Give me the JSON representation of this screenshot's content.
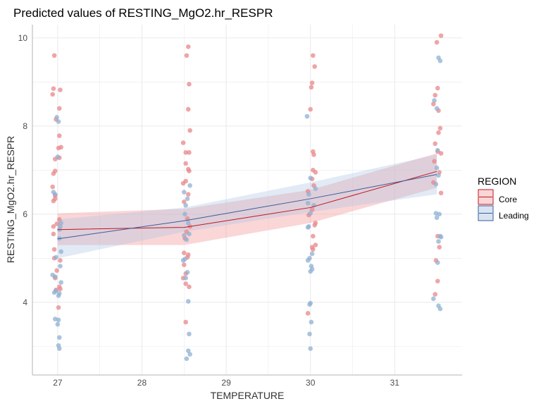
{
  "chart_data": {
    "type": "scatter",
    "title": "Predicted values of RESTING_MgO2.hr_RESPR",
    "xlabel": "TEMPERATURE",
    "ylabel": "RESTING_MgO2.hr_RESPR",
    "x_ticks": [
      27,
      28,
      29,
      30,
      31
    ],
    "y_ticks": [
      4,
      6,
      8,
      10
    ],
    "xlim": [
      26.7,
      31.8
    ],
    "ylim": [
      2.35,
      10.3
    ],
    "grid": true,
    "legend": {
      "title": "REGION",
      "position": "right",
      "entries": [
        "Core",
        "Leading"
      ]
    },
    "colors": {
      "core_line": "#c4161c",
      "core_point": "#e8878a",
      "core_band": "#f5a3a6",
      "leading_line": "#3b5c9a",
      "leading_point": "#8fb0d3",
      "leading_band": "#a9c4e3",
      "grid": "#ebebeb",
      "axis": "#b3b3b3"
    },
    "series": [
      {
        "name": "Core",
        "fit": {
          "x": [
            27,
            28.5,
            30,
            31.5
          ],
          "y": [
            5.65,
            5.7,
            6.15,
            6.97
          ],
          "lower": [
            5.3,
            5.3,
            5.8,
            6.6
          ],
          "upper": [
            6.02,
            6.12,
            6.55,
            7.38
          ]
        },
        "points": [
          [
            26.96,
            9.6
          ],
          [
            26.95,
            8.85
          ],
          [
            26.94,
            8.72
          ],
          [
            27.03,
            8.82
          ],
          [
            27.02,
            8.4
          ],
          [
            26.98,
            8.15
          ],
          [
            27.02,
            7.78
          ],
          [
            27.01,
            7.5
          ],
          [
            27.04,
            7.52
          ],
          [
            26.97,
            7.25
          ],
          [
            27.02,
            7.28
          ],
          [
            26.97,
            6.98
          ],
          [
            26.95,
            6.92
          ],
          [
            26.94,
            6.62
          ],
          [
            26.97,
            6.42
          ],
          [
            26.95,
            6.3
          ],
          [
            26.97,
            6.35
          ],
          [
            27.02,
            5.88
          ],
          [
            26.99,
            5.78
          ],
          [
            26.95,
            5.72
          ],
          [
            26.95,
            5.55
          ],
          [
            26.96,
            5.2
          ],
          [
            26.96,
            5.0
          ],
          [
            27.03,
            4.95
          ],
          [
            26.99,
            4.72
          ],
          [
            26.97,
            4.55
          ],
          [
            27.02,
            4.35
          ],
          [
            27.03,
            4.3
          ],
          [
            26.98,
            4.28
          ],
          [
            27.01,
            3.88
          ],
          [
            28.55,
            9.8
          ],
          [
            28.53,
            9.6
          ],
          [
            28.56,
            8.95
          ],
          [
            28.55,
            8.38
          ],
          [
            28.57,
            7.9
          ],
          [
            28.49,
            7.62
          ],
          [
            28.52,
            7.4
          ],
          [
            28.56,
            7.4
          ],
          [
            28.52,
            7.15
          ],
          [
            28.55,
            7.02
          ],
          [
            28.56,
            6.98
          ],
          [
            28.52,
            6.75
          ],
          [
            28.49,
            6.7
          ],
          [
            28.55,
            6.45
          ],
          [
            28.5,
            6.28
          ],
          [
            28.54,
            5.9
          ],
          [
            28.57,
            5.72
          ],
          [
            28.53,
            5.6
          ],
          [
            28.51,
            5.45
          ],
          [
            28.5,
            5.12
          ],
          [
            28.55,
            5.08
          ],
          [
            28.54,
            5.02
          ],
          [
            28.5,
            4.85
          ],
          [
            28.52,
            4.65
          ],
          [
            28.49,
            4.55
          ],
          [
            28.52,
            4.42
          ],
          [
            28.56,
            4.35
          ],
          [
            28.52,
            3.55
          ],
          [
            30.03,
            9.6
          ],
          [
            30.05,
            9.35
          ],
          [
            30.02,
            8.98
          ],
          [
            30.01,
            8.88
          ],
          [
            30.0,
            8.38
          ],
          [
            30.03,
            7.42
          ],
          [
            30.04,
            7.35
          ],
          [
            30.03,
            7.0
          ],
          [
            30.06,
            6.95
          ],
          [
            30.02,
            6.8
          ],
          [
            30.04,
            6.65
          ],
          [
            29.97,
            6.52
          ],
          [
            30.02,
            6.1
          ],
          [
            29.98,
            5.98
          ],
          [
            30.06,
            5.8
          ],
          [
            30.05,
            5.75
          ],
          [
            30.03,
            5.5
          ],
          [
            30.06,
            5.3
          ],
          [
            30.02,
            5.25
          ],
          [
            30.03,
            5.2
          ],
          [
            29.97,
            3.75
          ],
          [
            31.55,
            10.05
          ],
          [
            31.5,
            9.9
          ],
          [
            31.48,
            8.7
          ],
          [
            31.51,
            8.86
          ],
          [
            31.46,
            8.5
          ],
          [
            31.52,
            8.35
          ],
          [
            31.54,
            7.95
          ],
          [
            31.52,
            7.85
          ],
          [
            31.48,
            7.6
          ],
          [
            31.51,
            7.42
          ],
          [
            31.55,
            7.38
          ],
          [
            31.47,
            7.2
          ],
          [
            31.53,
            6.95
          ],
          [
            31.46,
            6.72
          ],
          [
            31.55,
            6.48
          ],
          [
            31.51,
            5.5
          ],
          [
            31.53,
            5.25
          ],
          [
            31.49,
            4.95
          ],
          [
            31.51,
            4.48
          ],
          [
            31.48,
            4.18
          ]
        ]
      },
      {
        "name": "Leading",
        "fit": {
          "x": [
            27,
            28.5,
            30,
            31.5
          ],
          "y": [
            5.44,
            5.85,
            6.35,
            6.9
          ],
          "lower": [
            5.0,
            5.6,
            6.05,
            6.45
          ],
          "upper": [
            5.88,
            6.15,
            6.72,
            7.35
          ]
        },
        "points": [
          [
            26.99,
            8.2
          ],
          [
            27.01,
            8.1
          ],
          [
            27.0,
            7.3
          ],
          [
            26.95,
            6.5
          ],
          [
            26.97,
            6.45
          ],
          [
            27.04,
            5.8
          ],
          [
            27.03,
            5.72
          ],
          [
            27.02,
            5.65
          ],
          [
            27.02,
            5.45
          ],
          [
            27.04,
            5.15
          ],
          [
            26.98,
            5.02
          ],
          [
            27.03,
            4.82
          ],
          [
            26.94,
            4.62
          ],
          [
            26.97,
            4.58
          ],
          [
            27.04,
            4.45
          ],
          [
            26.98,
            4.26
          ],
          [
            26.96,
            4.22
          ],
          [
            27.02,
            4.2
          ],
          [
            27.01,
            4.15
          ],
          [
            26.97,
            3.62
          ],
          [
            27.01,
            3.6
          ],
          [
            27.0,
            3.5
          ],
          [
            27.02,
            3.2
          ],
          [
            27.01,
            3.02
          ],
          [
            27.02,
            2.95
          ],
          [
            28.57,
            6.65
          ],
          [
            28.54,
            6.35
          ],
          [
            28.5,
            6.5
          ],
          [
            28.52,
            6.2
          ],
          [
            28.51,
            6.0
          ],
          [
            28.55,
            5.8
          ],
          [
            28.56,
            5.55
          ],
          [
            28.5,
            5.52
          ],
          [
            28.53,
            5.42
          ],
          [
            28.51,
            4.98
          ],
          [
            28.49,
            4.95
          ],
          [
            28.54,
            4.68
          ],
          [
            28.52,
            4.55
          ],
          [
            28.55,
            4.02
          ],
          [
            28.56,
            3.28
          ],
          [
            28.55,
            2.9
          ],
          [
            28.57,
            2.82
          ],
          [
            28.53,
            2.72
          ],
          [
            29.96,
            8.22
          ],
          [
            30.0,
            6.82
          ],
          [
            30.06,
            6.58
          ],
          [
            29.98,
            6.45
          ],
          [
            29.97,
            6.25
          ],
          [
            30.04,
            6.2
          ],
          [
            30.0,
            6.02
          ],
          [
            29.98,
            5.72
          ],
          [
            29.97,
            5.7
          ],
          [
            30.02,
            5.1
          ],
          [
            29.99,
            5.0
          ],
          [
            29.97,
            4.95
          ],
          [
            30.01,
            4.82
          ],
          [
            30.02,
            4.75
          ],
          [
            30.0,
            4.7
          ],
          [
            30.0,
            3.98
          ],
          [
            29.99,
            3.95
          ],
          [
            30.01,
            3.55
          ],
          [
            29.99,
            3.28
          ],
          [
            30.0,
            2.95
          ],
          [
            31.52,
            9.55
          ],
          [
            31.54,
            9.48
          ],
          [
            31.47,
            8.58
          ],
          [
            31.5,
            8.4
          ],
          [
            31.51,
            7.45
          ],
          [
            31.5,
            7.05
          ],
          [
            31.52,
            6.88
          ],
          [
            31.49,
            6.68
          ],
          [
            31.49,
            6.02
          ],
          [
            31.53,
            6.0
          ],
          [
            31.5,
            5.92
          ],
          [
            31.54,
            5.5
          ],
          [
            31.55,
            5.48
          ],
          [
            31.52,
            5.38
          ],
          [
            31.51,
            4.9
          ],
          [
            31.46,
            4.08
          ],
          [
            31.52,
            3.92
          ],
          [
            31.54,
            3.85
          ]
        ]
      }
    ]
  }
}
